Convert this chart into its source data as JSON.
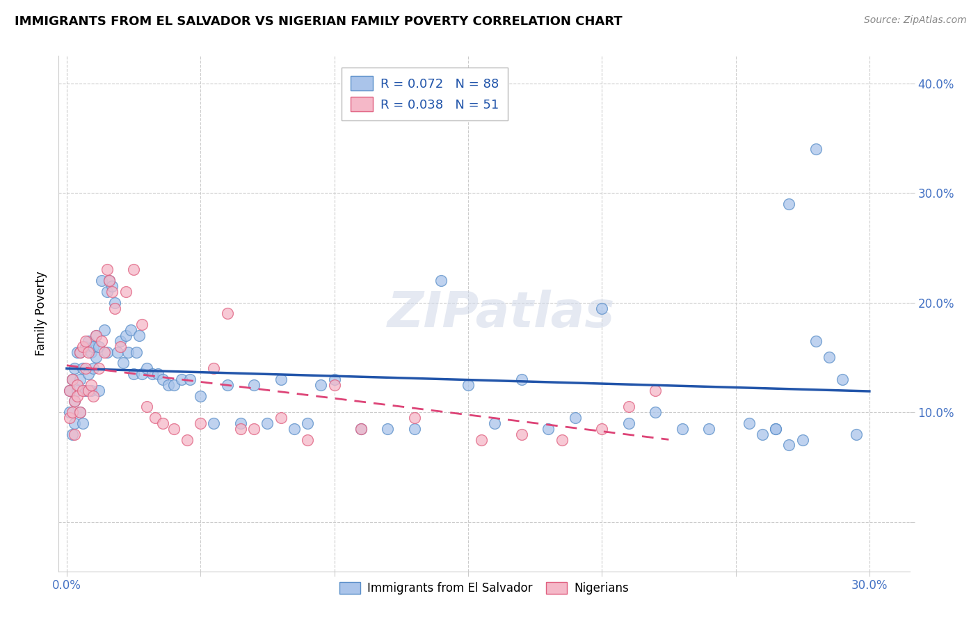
{
  "title": "IMMIGRANTS FROM EL SALVADOR VS NIGERIAN FAMILY POVERTY CORRELATION CHART",
  "source": "Source: ZipAtlas.com",
  "ylabel": "Family Poverty",
  "xlim": [
    -0.003,
    0.315
  ],
  "ylim": [
    -0.045,
    0.425
  ],
  "x_tick_positions": [
    0.0,
    0.05,
    0.1,
    0.15,
    0.2,
    0.25,
    0.3
  ],
  "x_tick_labels": [
    "0.0%",
    "",
    "",
    "",
    "",
    "",
    "30.0%"
  ],
  "y_tick_positions": [
    0.0,
    0.1,
    0.2,
    0.3,
    0.4
  ],
  "y_tick_labels": [
    "",
    "10.0%",
    "20.0%",
    "30.0%",
    "40.0%"
  ],
  "series1_label": "Immigrants from El Salvador",
  "series2_label": "Nigerians",
  "series1_color": "#aac4ea",
  "series2_color": "#f5b8c8",
  "series1_edge": "#5b8fc9",
  "series2_edge": "#e06080",
  "line1_color": "#2255aa",
  "line2_color": "#dd4477",
  "R1": 0.072,
  "N1": 88,
  "R2": 0.038,
  "N2": 51,
  "watermark_text": "ZIPatlas",
  "series1_x": [
    0.001,
    0.001,
    0.002,
    0.002,
    0.003,
    0.003,
    0.003,
    0.004,
    0.004,
    0.005,
    0.005,
    0.005,
    0.006,
    0.006,
    0.007,
    0.007,
    0.008,
    0.008,
    0.009,
    0.009,
    0.01,
    0.01,
    0.011,
    0.011,
    0.012,
    0.012,
    0.013,
    0.014,
    0.015,
    0.015,
    0.016,
    0.017,
    0.018,
    0.019,
    0.02,
    0.021,
    0.022,
    0.023,
    0.024,
    0.025,
    0.026,
    0.027,
    0.028,
    0.03,
    0.032,
    0.034,
    0.036,
    0.038,
    0.04,
    0.043,
    0.046,
    0.05,
    0.055,
    0.06,
    0.065,
    0.07,
    0.075,
    0.08,
    0.085,
    0.09,
    0.095,
    0.1,
    0.11,
    0.12,
    0.13,
    0.14,
    0.15,
    0.16,
    0.17,
    0.18,
    0.19,
    0.2,
    0.21,
    0.22,
    0.23,
    0.24,
    0.255,
    0.265,
    0.27,
    0.275,
    0.28,
    0.285,
    0.29,
    0.295,
    0.28,
    0.27,
    0.265,
    0.26
  ],
  "series1_y": [
    0.12,
    0.1,
    0.13,
    0.08,
    0.11,
    0.09,
    0.14,
    0.12,
    0.155,
    0.1,
    0.13,
    0.155,
    0.09,
    0.14,
    0.16,
    0.12,
    0.165,
    0.135,
    0.155,
    0.12,
    0.16,
    0.14,
    0.17,
    0.15,
    0.16,
    0.12,
    0.22,
    0.175,
    0.21,
    0.155,
    0.22,
    0.215,
    0.2,
    0.155,
    0.165,
    0.145,
    0.17,
    0.155,
    0.175,
    0.135,
    0.155,
    0.17,
    0.135,
    0.14,
    0.135,
    0.135,
    0.13,
    0.125,
    0.125,
    0.13,
    0.13,
    0.115,
    0.09,
    0.125,
    0.09,
    0.125,
    0.09,
    0.13,
    0.085,
    0.09,
    0.125,
    0.13,
    0.085,
    0.085,
    0.085,
    0.22,
    0.125,
    0.09,
    0.13,
    0.085,
    0.095,
    0.195,
    0.09,
    0.1,
    0.085,
    0.085,
    0.09,
    0.085,
    0.07,
    0.075,
    0.165,
    0.15,
    0.13,
    0.08,
    0.34,
    0.29,
    0.085,
    0.08
  ],
  "series2_x": [
    0.001,
    0.001,
    0.002,
    0.002,
    0.003,
    0.003,
    0.004,
    0.004,
    0.005,
    0.005,
    0.006,
    0.006,
    0.007,
    0.007,
    0.008,
    0.008,
    0.009,
    0.01,
    0.011,
    0.012,
    0.013,
    0.014,
    0.015,
    0.016,
    0.017,
    0.018,
    0.02,
    0.022,
    0.025,
    0.028,
    0.03,
    0.033,
    0.036,
    0.04,
    0.045,
    0.05,
    0.055,
    0.06,
    0.065,
    0.07,
    0.08,
    0.09,
    0.1,
    0.11,
    0.13,
    0.155,
    0.17,
    0.185,
    0.2,
    0.21,
    0.22
  ],
  "series2_y": [
    0.12,
    0.095,
    0.13,
    0.1,
    0.11,
    0.08,
    0.125,
    0.115,
    0.155,
    0.1,
    0.16,
    0.12,
    0.165,
    0.14,
    0.155,
    0.12,
    0.125,
    0.115,
    0.17,
    0.14,
    0.165,
    0.155,
    0.23,
    0.22,
    0.21,
    0.195,
    0.16,
    0.21,
    0.23,
    0.18,
    0.105,
    0.095,
    0.09,
    0.085,
    0.075,
    0.09,
    0.14,
    0.19,
    0.085,
    0.085,
    0.095,
    0.075,
    0.125,
    0.085,
    0.095,
    0.075,
    0.08,
    0.075,
    0.085,
    0.105,
    0.12
  ]
}
